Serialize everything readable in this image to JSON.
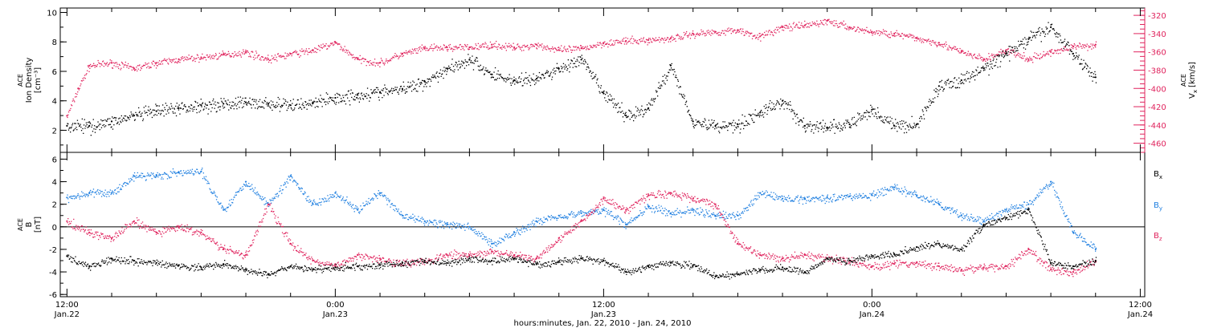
{
  "chart_data": [
    {
      "type": "scatter",
      "panel": "top",
      "ylabel": {
        "mission": "ACE",
        "quantity": "Ion Density",
        "unit": "[cm⁻³]"
      },
      "ylabel_right": {
        "mission": "ACE",
        "quantity": "V",
        "sub": "x",
        "unit": "[km/s]"
      },
      "ylim": [
        0.5,
        10.3
      ],
      "yticks": [
        2,
        4,
        6,
        8,
        10
      ],
      "ylim_right": [
        -470,
        -312
      ],
      "yticks_right": [
        -460,
        -440,
        -420,
        -400,
        -380,
        -360,
        -340,
        -320
      ],
      "x_range_hours": [
        -0.3,
        48.2
      ],
      "series": [
        {
          "color": "#000000",
          "x": [
            0,
            1,
            2,
            3,
            4,
            5,
            6,
            7,
            8,
            9,
            10,
            11,
            12,
            13,
            14,
            15,
            16,
            17,
            18,
            19,
            20,
            21,
            22,
            23,
            24,
            25,
            26,
            27,
            28,
            29,
            30,
            31,
            32,
            33,
            34,
            35,
            36,
            37,
            38,
            39,
            40,
            41,
            42,
            43,
            44,
            45,
            46
          ],
          "values": [
            2.3,
            2.3,
            2.6,
            3.0,
            3.3,
            3.5,
            3.7,
            3.8,
            3.9,
            3.8,
            3.7,
            3.9,
            4.2,
            4.4,
            4.6,
            4.8,
            5.3,
            6.2,
            6.8,
            5.8,
            5.4,
            5.5,
            6.2,
            6.8,
            4.5,
            3.0,
            3.5,
            6.4,
            2.6,
            2.3,
            2.4,
            3.2,
            4.0,
            2.3,
            2.2,
            2.4,
            3.4,
            2.3,
            2.4,
            5.0,
            5.4,
            6.2,
            7.2,
            8.2,
            9.0,
            7.2,
            5.6
          ]
        },
        {
          "color": "#e0245e",
          "x": [
            0,
            0.5,
            1,
            2,
            3,
            4,
            5,
            6,
            7,
            8,
            9,
            10,
            11,
            12,
            13,
            14,
            15,
            16,
            17,
            18,
            19,
            20,
            21,
            22,
            23,
            24,
            25,
            26,
            27,
            28,
            29,
            30,
            31,
            32,
            33,
            34,
            35,
            36,
            37,
            38,
            39,
            40,
            41,
            42,
            43,
            44,
            45,
            46
          ],
          "values": [
            -430,
            -400,
            -375,
            -372,
            -378,
            -372,
            -368,
            -366,
            -363,
            -360,
            -368,
            -362,
            -358,
            -350,
            -368,
            -372,
            -362,
            -356,
            -355,
            -355,
            -352,
            -355,
            -352,
            -358,
            -356,
            -350,
            -348,
            -347,
            -345,
            -340,
            -338,
            -336,
            -343,
            -333,
            -331,
            -326,
            -333,
            -338,
            -340,
            -345,
            -350,
            -360,
            -368,
            -358,
            -368,
            -360,
            -354,
            -352
          ]
        }
      ]
    },
    {
      "type": "scatter",
      "panel": "bottom",
      "ylabel": {
        "mission": "ACE",
        "quantity": "B",
        "unit": "[nT]"
      },
      "ylim": [
        -6.2,
        6.6
      ],
      "yticks": [
        -6,
        -4,
        -2,
        0,
        2,
        4,
        6
      ],
      "x_range_hours": [
        -0.3,
        48.2
      ],
      "series": [
        {
          "name": "B_x",
          "label_main": "B",
          "label_sub": "x",
          "color": "#000000",
          "x": [
            0,
            1,
            2,
            3,
            4,
            5,
            6,
            7,
            8,
            9,
            10,
            11,
            12,
            13,
            14,
            15,
            16,
            17,
            18,
            19,
            20,
            21,
            22,
            23,
            24,
            25,
            26,
            27,
            28,
            29,
            30,
            31,
            32,
            33,
            34,
            35,
            36,
            37,
            38,
            39,
            40,
            41,
            42,
            43,
            44,
            45,
            46
          ],
          "values": [
            -2.6,
            -3.5,
            -2.8,
            -3.0,
            -3.2,
            -3.4,
            -3.6,
            -3.3,
            -3.8,
            -4.2,
            -3.5,
            -3.8,
            -3.6,
            -3.5,
            -3.4,
            -3.2,
            -3.0,
            -3.2,
            -2.8,
            -3.0,
            -2.8,
            -3.3,
            -3.1,
            -2.8,
            -3.0,
            -4.0,
            -3.5,
            -3.2,
            -3.4,
            -4.4,
            -4.2,
            -3.8,
            -3.6,
            -4.0,
            -2.8,
            -3.0,
            -2.6,
            -2.4,
            -1.8,
            -1.5,
            -2.0,
            0.2,
            0.8,
            1.5,
            -3.2,
            -3.5,
            -3.0
          ]
        },
        {
          "name": "B_y",
          "label_main": "B",
          "label_sub": "y",
          "color": "#1f7fe0",
          "x": [
            0,
            1,
            2,
            3,
            4,
            5,
            6,
            7,
            8,
            9,
            10,
            11,
            12,
            13,
            14,
            15,
            16,
            17,
            18,
            19,
            20,
            21,
            22,
            23,
            24,
            25,
            26,
            27,
            28,
            29,
            30,
            31,
            32,
            33,
            34,
            35,
            36,
            37,
            38,
            39,
            40,
            41,
            42,
            43,
            44,
            45,
            46
          ],
          "values": [
            2.6,
            3.0,
            3.0,
            4.5,
            4.6,
            4.8,
            4.9,
            1.5,
            4.0,
            2.0,
            4.5,
            2.0,
            3.0,
            1.5,
            3.0,
            1.0,
            0.5,
            0.2,
            0.0,
            -1.5,
            -0.5,
            0.5,
            1.0,
            1.2,
            1.5,
            0.2,
            1.8,
            1.2,
            1.5,
            1.0,
            1.0,
            3.0,
            2.5,
            2.5,
            2.6,
            2.7,
            2.8,
            3.5,
            2.8,
            2.0,
            1.0,
            0.5,
            1.5,
            2.0,
            4.0,
            -0.5,
            -2.0
          ]
        },
        {
          "name": "B_z",
          "label_main": "B",
          "label_sub": "z",
          "color": "#e0245e",
          "x": [
            0,
            1,
            2,
            3,
            4,
            5,
            6,
            7,
            8,
            9,
            10,
            11,
            12,
            13,
            14,
            15,
            16,
            17,
            18,
            19,
            20,
            21,
            22,
            23,
            24,
            25,
            26,
            27,
            28,
            29,
            30,
            31,
            32,
            33,
            34,
            35,
            36,
            37,
            38,
            39,
            40,
            41,
            42,
            43,
            44,
            45,
            46
          ],
          "values": [
            0.5,
            -0.5,
            -1.0,
            0.5,
            -0.5,
            0.0,
            -0.5,
            -2.0,
            -2.5,
            2.0,
            -1.5,
            -3.0,
            -3.5,
            -2.5,
            -2.8,
            -3.2,
            -3.0,
            -2.5,
            -2.5,
            -2.2,
            -2.5,
            -2.8,
            -1.0,
            0.5,
            2.5,
            1.5,
            2.8,
            3.0,
            2.5,
            2.0,
            -1.5,
            -2.5,
            -2.8,
            -2.5,
            -2.8,
            -3.0,
            -3.5,
            -3.3,
            -3.2,
            -3.5,
            -3.8,
            -3.6,
            -3.5,
            -2.0,
            -3.8,
            -4.0,
            -3.0
          ]
        }
      ]
    }
  ],
  "x_axis": {
    "ticks": [
      {
        "hour": 0,
        "time": "12:00",
        "date": "Jan.22"
      },
      {
        "hour": 12,
        "time": "0:00",
        "date": "Jan.23"
      },
      {
        "hour": 24,
        "time": "12:00",
        "date": "Jan.23"
      },
      {
        "hour": 36,
        "time": "0:00",
        "date": "Jan.24"
      },
      {
        "hour": 48,
        "time": "12:00",
        "date": "Jan.24"
      }
    ],
    "minor_step_hours": 2,
    "label": "hours:minutes, Jan. 22, 2010 - Jan. 24, 2010"
  },
  "colors": {
    "density": "#000000",
    "velocity": "#e0245e",
    "bx": "#000000",
    "by": "#1f7fe0",
    "bz": "#e0245e",
    "frame": "#000000"
  }
}
